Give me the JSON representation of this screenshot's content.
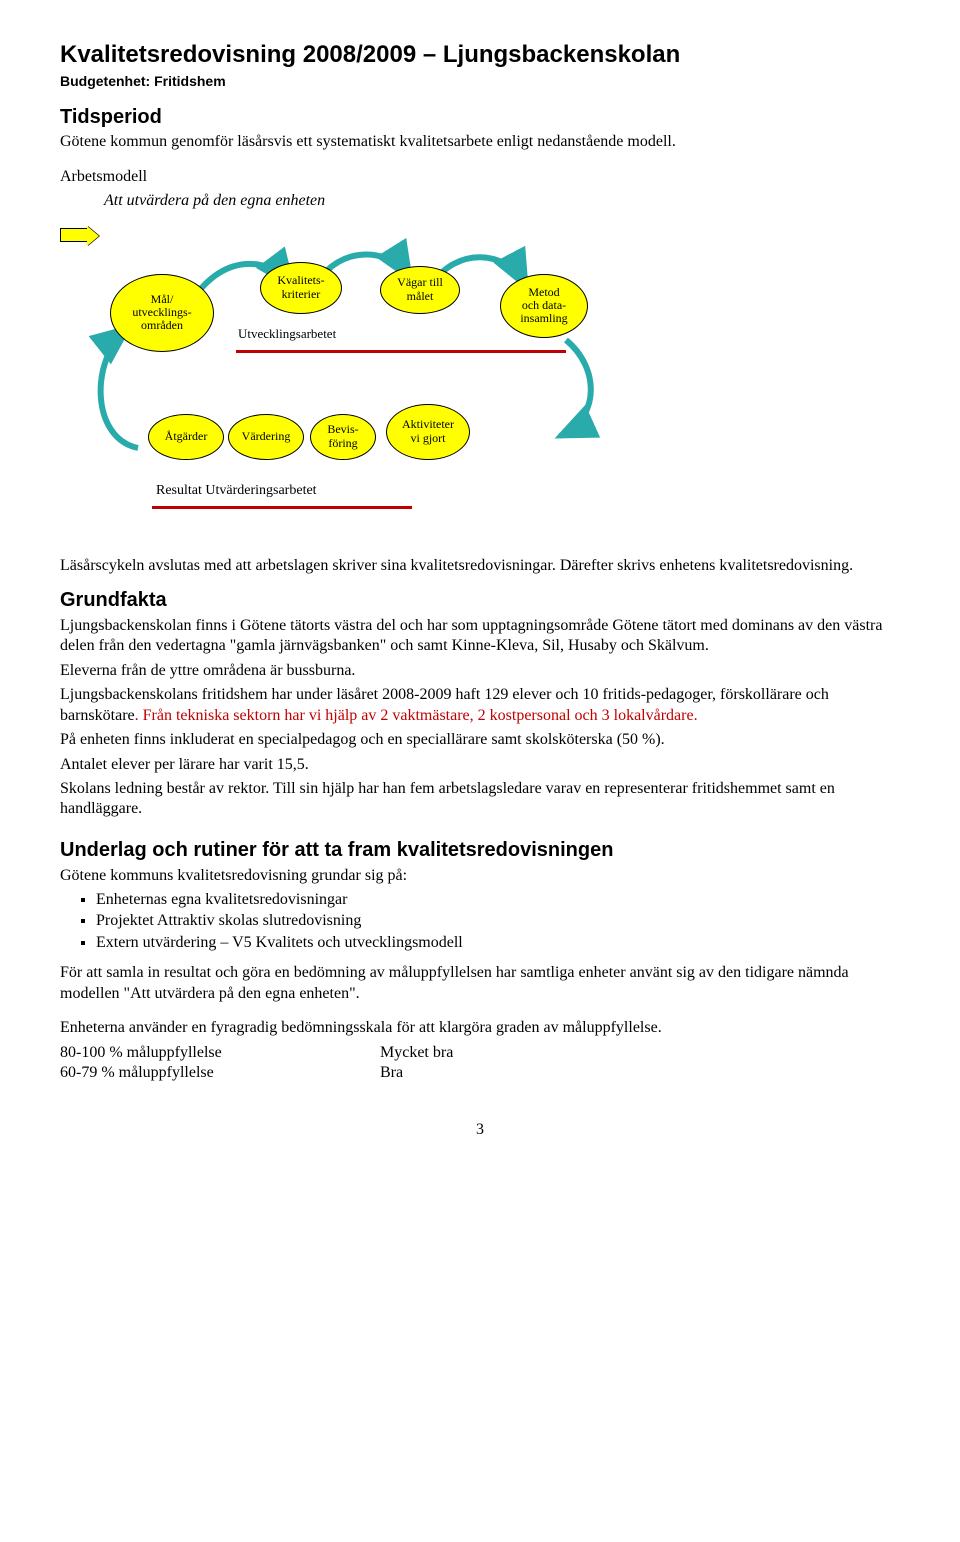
{
  "title": "Kvalitetsredovisning 2008/2009 – Ljungsbackenskolan",
  "subtitle": "Budgetenhet: Fritidshem",
  "section_tidsperiod": "Tidsperiod",
  "tidsperiod_text": "Götene kommun genomför läsårsvis ett systematiskt kvalitetsarbete enligt nedanstående modell.",
  "arbetsmodell_heading": "Arbetsmodell",
  "arbetsmodell_sub": "Att utvärdera på den egna enheten",
  "bubbles_row1": {
    "b1": "Mål/\nutvecklings-\nområden",
    "b2": "Kvalitets-\nkriterier",
    "b3": "Vägar till\nmålet",
    "b4": "Metod\noch data-\ninsamling",
    "b2b": "Utvecklingsarbetet"
  },
  "bubbles_row2": {
    "b1": "Åtgärder",
    "b2": "Värdering",
    "b3": "Bevis-\nföring",
    "b4": "Aktiviteter\nvi gjort",
    "label": "Resultat  Utvärderingsarbetet"
  },
  "diagram_colors": {
    "bubble_fill": "#ffff00",
    "bubble_stroke": "#000000",
    "hr_red": "#c00000",
    "arrow_teal": "#29abab"
  },
  "lasarscykeln": "Läsårscykeln avslutas med att arbetslagen skriver sina kvalitetsredovisningar. Därefter skrivs enhetens kvalitetsredovisning.",
  "section_grundfakta": "Grundfakta",
  "grundfakta_p1": "Ljungsbackenskolan finns i Götene tätorts västra del och har som upptagningsområde Götene tätort med dominans av den västra delen från den vedertagna \"gamla järnvägsbanken\" och samt Kinne-Kleva, Sil, Husaby och Skälvum.",
  "grundfakta_p2": "Eleverna från de yttre områdena är bussburna.",
  "grundfakta_p3a": "Ljungsbackenskolans fritidshem har under läsåret 2008-2009 haft 129 elever och 10 fritids-pedagoger, förskollärare och barnskötare",
  "grundfakta_p3b": ". Från tekniska sektorn har vi hjälp av 2 vaktmästare, 2 kostpersonal och 3 lokalvårdare.",
  "grundfakta_p4": "På enheten finns inkluderat en specialpedagog och en speciallärare samt skolsköterska (50 %).",
  "grundfakta_p5": "Antalet elever per lärare har varit 15,5.",
  "grundfakta_p6": "Skolans ledning består av rektor. Till sin hjälp har han fem arbetslagsledare varav en representerar fritidshemmet samt en handläggare.",
  "section_underlag": "Underlag och rutiner för att ta fram kvalitetsredovisningen",
  "underlag_intro": "Götene kommuns kvalitetsredovisning grundar sig på:",
  "underlag_items": [
    "Enheternas egna kvalitetsredovisningar",
    "Projektet Attraktiv skolas slutredovisning",
    "Extern utvärdering – V5 Kvalitets och utvecklingsmodell"
  ],
  "underlag_p2": "För att samla in resultat och göra en bedömning av måluppfyllelsen har samtliga enheter använt sig av den tidigare nämnda modellen \"Att utvärdera på den egna enheten\".",
  "underlag_p3": "Enheterna använder en fyragradig bedömningsskala för att klargöra graden av måluppfyllelse.",
  "scale": [
    {
      "left": "80-100 % måluppfyllelse",
      "right": "Mycket bra"
    },
    {
      "left": "60-79 % måluppfyllelse",
      "right": "Bra"
    }
  ],
  "page_number": "3"
}
